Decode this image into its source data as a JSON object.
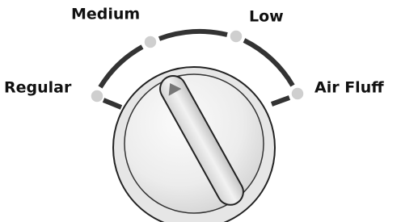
{
  "settings": [
    {
      "label": "Regular"
    },
    {
      "label": "Medium"
    },
    {
      "label": "Low"
    },
    {
      "label": "Air Fluff"
    }
  ]
}
